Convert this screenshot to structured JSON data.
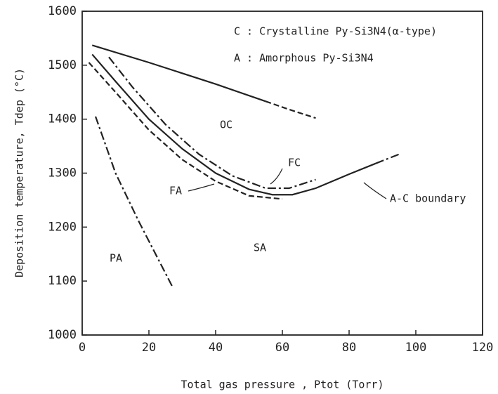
{
  "chart_data": {
    "type": "line",
    "x_label": "Total gas pressure , Ptot (Torr)",
    "y_label": "Deposition temperature, Tdep (°C)",
    "xlim": [
      0,
      120
    ],
    "xticks": [
      0,
      20,
      40,
      60,
      80,
      100,
      120
    ],
    "ylim": [
      1000,
      1600
    ],
    "yticks": [
      1000,
      1100,
      1200,
      1300,
      1400,
      1500,
      1600
    ],
    "annotations": [
      "C : Crystalline Py-Si3N4(α-type)",
      "A : Amorphous Py-Si3N4",
      "OC",
      "FC",
      "FA",
      "A-C boundary",
      "SA",
      "PA"
    ],
    "series": [
      {
        "color": "#222",
        "dash": "solid",
        "x": [
          3,
          20,
          40,
          55
        ],
        "values": [
          1537,
          1505,
          1465,
          1433
        ]
      },
      {
        "color": "#222",
        "dash": "dash",
        "x": [
          55,
          62,
          70
        ],
        "values": [
          1433,
          1418,
          1402
        ]
      },
      {
        "color": "#222",
        "dash": "dashdot",
        "x": [
          8,
          15,
          25,
          35,
          45,
          55,
          62,
          70
        ],
        "values": [
          1515,
          1460,
          1390,
          1335,
          1295,
          1272,
          1272,
          1288
        ]
      },
      {
        "color": "#222",
        "dash": "solid",
        "x": [
          3,
          10,
          20,
          30,
          40,
          50,
          57,
          63,
          70,
          80,
          88
        ],
        "values": [
          1520,
          1470,
          1400,
          1345,
          1300,
          1270,
          1260,
          1260,
          1272,
          1298,
          1318
        ]
      },
      {
        "color": "#222",
        "dash": "dashdot",
        "x": [
          88,
          95
        ],
        "values": [
          1318,
          1335
        ]
      },
      {
        "color": "#222",
        "dash": "dash",
        "x": [
          2,
          10,
          20,
          30,
          40,
          50,
          60
        ],
        "values": [
          1505,
          1450,
          1380,
          1325,
          1285,
          1258,
          1252
        ]
      },
      {
        "color": "#222",
        "dash": "dashdot",
        "x": [
          4,
          10,
          17,
          27
        ],
        "values": [
          1405,
          1300,
          1210,
          1090
        ]
      }
    ]
  }
}
